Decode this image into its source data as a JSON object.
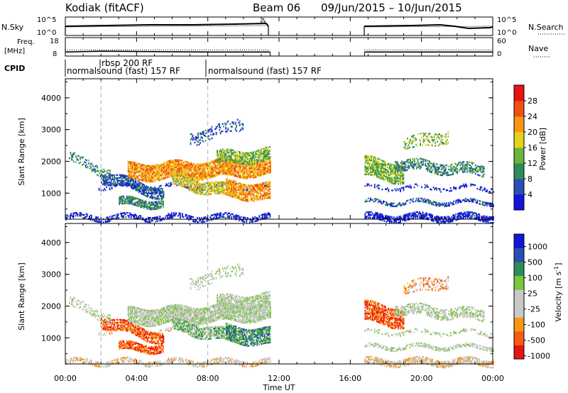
{
  "header": {
    "site": "Kodiak (fitACF)",
    "beam": "Beam 06",
    "date_range": "09/Jun/2015 – 10/Jun/2015"
  },
  "colors": {
    "axis": "#000000",
    "dashed_marker": "#b0b0b0",
    "power_scale": [
      "#1414dc",
      "#2850b4",
      "#2e8c5a",
      "#6ab43c",
      "#e6d21e",
      "#fa9614",
      "#f05014",
      "#e61414"
    ],
    "velocity_scale": [
      "#e61414",
      "#fa5a14",
      "#fa9614",
      "#c8c8c8",
      "#c8c8c8",
      "#78c83c",
      "#2e8c5a",
      "#2850b4",
      "#1414dc"
    ]
  },
  "chart_data": [
    {
      "type": "line",
      "name": "noise-panel",
      "left_label": "N.Sky",
      "right_label": "N.Search",
      "left_ticks": [
        "10^5",
        "10^0"
      ],
      "right_ticks": [
        "10^5",
        "10^0"
      ],
      "x_range_hours": [
        0,
        24
      ],
      "data_gap_hours": [
        11.5,
        16.8
      ]
    },
    {
      "type": "line",
      "name": "frequency-panel",
      "left_label": "Freq. [MHz]",
      "right_label": "Nave",
      "left_ticks": [
        "18",
        "8"
      ],
      "right_ticks": [
        "60",
        "0"
      ],
      "freq_mhz_segments": [
        {
          "x": [
            0,
            2,
            8,
            11.5
          ],
          "y": [
            10.2,
            10.6,
            10.2,
            10.2
          ]
        },
        {
          "x": [
            16.8,
            24
          ],
          "y": [
            10.2,
            10.2
          ]
        }
      ],
      "nave_level": 20
    },
    {
      "type": "table",
      "name": "cpid-panel",
      "label": "CPID",
      "programs": [
        {
          "start_hour": 0,
          "label": "normalsound (fast) 157 RF"
        },
        {
          "start_hour": 2,
          "label": "rbsp 200 RF"
        },
        {
          "start_hour": 8,
          "label": "normalsound (fast) 157 RF"
        }
      ]
    },
    {
      "type": "heatmap",
      "name": "power-panel",
      "ylabel": "Slant Range [km]",
      "xlim_hours": [
        0,
        24
      ],
      "ylim_km": [
        180,
        4600
      ],
      "yticks": [
        "1000",
        "2000",
        "3000",
        "4000"
      ],
      "colorbar_label": "Power [dB]",
      "colorbar_ticks": [
        "4",
        "8",
        "12",
        "16",
        "20",
        "24",
        "28"
      ],
      "colorbar_range": [
        0,
        32
      ],
      "dashed_marker_hours": [
        2,
        8
      ]
    },
    {
      "type": "heatmap",
      "name": "velocity-panel",
      "ylabel": "Slant Range [km]",
      "xlabel": "Time UT",
      "xlim_hours": [
        0,
        24
      ],
      "ylim_km": [
        180,
        4600
      ],
      "yticks": [
        "1000",
        "2000",
        "3000",
        "4000"
      ],
      "xticks": [
        "00:00",
        "04:00",
        "08:00",
        "12:00",
        "16:00",
        "20:00",
        "00:00"
      ],
      "xtick_hours": [
        0,
        4,
        8,
        12,
        16,
        20,
        24
      ],
      "colorbar_label": "Velocity [m s^-1]",
      "colorbar_ticks": [
        "1000",
        "500",
        "100",
        "25",
        "-25",
        "-100",
        "-500",
        "-1000"
      ],
      "dashed_marker_hours": [
        2,
        8
      ]
    }
  ]
}
